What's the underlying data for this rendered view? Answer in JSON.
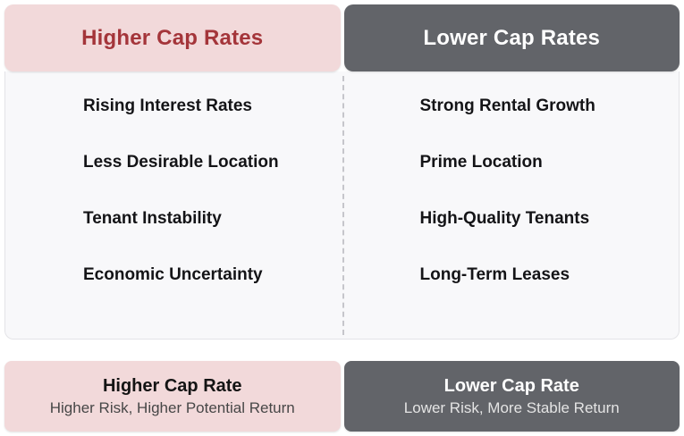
{
  "columns": [
    {
      "header": "Higher Cap Rates",
      "items": [
        "Rising Interest Rates",
        "Less Desirable Location",
        "Tenant Instability",
        "Economic Uncertainty"
      ],
      "footer_title": "Higher Cap Rate",
      "footer_subtitle": "Higher Risk, Higher Potential Return"
    },
    {
      "header": "Lower Cap Rates",
      "items": [
        "Strong Rental Growth",
        "Prime Location",
        "High-Quality Tenants",
        "Long-Term Leases"
      ],
      "footer_title": "Lower Cap Rate",
      "footer_subtitle": "Lower Risk, More Stable Return"
    }
  ],
  "colors": {
    "pink_bg": "#f2d9da",
    "header_red": "#a4353a",
    "dark_bg": "#626469",
    "panel_bg": "#f8f8fa",
    "panel_border": "#e3e3e7",
    "divider": "#c6c6cb",
    "item_text": "#141417",
    "footer_sub_left": "#474747",
    "footer_sub_right": "#e4e4e4"
  }
}
